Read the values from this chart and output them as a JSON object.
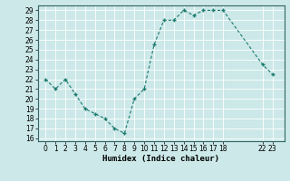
{
  "x": [
    0,
    1,
    2,
    3,
    4,
    5,
    6,
    7,
    8,
    9,
    10,
    11,
    12,
    13,
    14,
    15,
    16,
    17,
    18,
    22,
    23
  ],
  "y": [
    22,
    21,
    22,
    20.5,
    19,
    18.5,
    18,
    17,
    16.5,
    20,
    21,
    25.5,
    28,
    28,
    29,
    28.5,
    29,
    29,
    29,
    23.5,
    22.5
  ],
  "line_color": "#1a7a6e",
  "marker_color": "#1a7a6e",
  "bg_color": "#cce8e8",
  "grid_color": "#b0d0d0",
  "xlabel": "Humidex (Indice chaleur)",
  "xlim": [
    -0.8,
    24.2
  ],
  "ylim": [
    15.7,
    29.5
  ],
  "yticks": [
    16,
    17,
    18,
    19,
    20,
    21,
    22,
    23,
    24,
    25,
    26,
    27,
    28,
    29
  ],
  "xtick_positions": [
    0,
    1,
    2,
    3,
    4,
    5,
    6,
    7,
    8,
    9,
    10,
    11,
    12,
    13,
    14,
    15,
    16,
    17,
    18,
    22,
    23
  ],
  "xtick_labels": [
    "0",
    "1",
    "2",
    "3",
    "4",
    "5",
    "6",
    "7",
    "8",
    "9",
    "10",
    "11",
    "12",
    "13",
    "14",
    "15",
    "16",
    "17",
    "18",
    "22",
    "23"
  ]
}
